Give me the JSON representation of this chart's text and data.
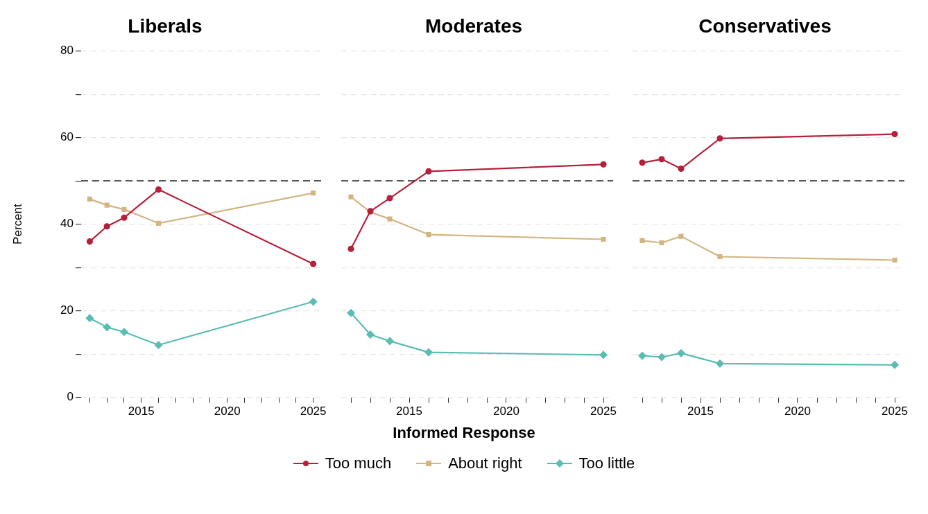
{
  "chart_data": [
    {
      "type": "line",
      "title": "Liberals",
      "ylabel": "Percent",
      "legend_title": "Informed Response",
      "legend": "bottom",
      "grid": "y",
      "x": [
        2012,
        2013,
        2014,
        2016,
        2025
      ],
      "xlim": [
        2011.5,
        2025.5
      ],
      "xticks": [
        {
          "value": 2012,
          "label": null
        },
        {
          "value": 2013,
          "label": null
        },
        {
          "value": 2014,
          "label": null
        },
        2015,
        {
          "value": 2016,
          "label": null
        },
        {
          "value": 2017,
          "label": null
        },
        {
          "value": 2018,
          "label": null
        },
        {
          "value": 2019,
          "label": null
        },
        2020,
        {
          "value": 2021,
          "label": null
        },
        {
          "value": 2022,
          "label": null
        },
        {
          "value": 2023,
          "label": null
        },
        {
          "value": 2024,
          "label": null
        },
        2025
      ],
      "ylim": [
        0,
        80
      ],
      "yticks": [
        0,
        {
          "value": 10,
          "label": null
        },
        20,
        {
          "value": 30,
          "label": null
        },
        40,
        {
          "value": 50,
          "label": null
        },
        60,
        {
          "value": 70,
          "label": null
        },
        80
      ],
      "ref_lines": [
        {
          "axis": "y",
          "value": 50,
          "color": "#222222",
          "line_style": "dashed"
        }
      ],
      "series": [
        {
          "name": "Too much",
          "color": "#b5203a",
          "marker": "circle",
          "values": [
            36,
            39.5,
            41.5,
            48,
            30.8
          ]
        },
        {
          "name": "About right",
          "color": "#d3b582",
          "marker": "square",
          "values": [
            45.8,
            44.4,
            43.4,
            40.2,
            47.2
          ]
        },
        {
          "name": "Too little",
          "color": "#5bbcb3",
          "marker": "diamond",
          "values": [
            18.3,
            16.2,
            15.1,
            12.1,
            22.1
          ]
        }
      ]
    },
    {
      "type": "line",
      "title": "Moderates",
      "tick_labels": "x",
      "grid": "y",
      "x": [
        2012,
        2013,
        2014,
        2016,
        2025
      ],
      "xlim": [
        2011.5,
        2025.5
      ],
      "xticks": [
        {
          "value": 2012,
          "label": null
        },
        {
          "value": 2013,
          "label": null
        },
        {
          "value": 2014,
          "label": null
        },
        2015,
        {
          "value": 2016,
          "label": null
        },
        {
          "value": 2017,
          "label": null
        },
        {
          "value": 2018,
          "label": null
        },
        {
          "value": 2019,
          "label": null
        },
        2020,
        {
          "value": 2021,
          "label": null
        },
        {
          "value": 2022,
          "label": null
        },
        {
          "value": 2023,
          "label": null
        },
        {
          "value": 2024,
          "label": null
        },
        2025
      ],
      "ylim": [
        0,
        80
      ],
      "yticks": [
        0,
        {
          "value": 10,
          "label": null
        },
        20,
        {
          "value": 30,
          "label": null
        },
        40,
        {
          "value": 50,
          "label": null
        },
        60,
        {
          "value": 70,
          "label": null
        },
        80
      ],
      "ref_lines": [
        {
          "axis": "y",
          "value": 50,
          "color": "#222222",
          "line_style": "dashed"
        }
      ],
      "series": [
        {
          "color": "#b5203a",
          "marker": "circle",
          "values": [
            34.3,
            43,
            46,
            52.2,
            53.8
          ]
        },
        {
          "color": "#d3b582",
          "marker": "square",
          "values": [
            46.3,
            42.8,
            41.2,
            37.6,
            36.5
          ]
        },
        {
          "color": "#5bbcb3",
          "marker": "diamond",
          "values": [
            19.5,
            14.5,
            13,
            10.4,
            9.8
          ]
        }
      ]
    },
    {
      "type": "line",
      "title": "Conservatives",
      "tick_labels": "x",
      "grid": "y",
      "x": [
        2012,
        2013,
        2014,
        2016,
        2025
      ],
      "xlim": [
        2011.5,
        2025.5
      ],
      "xticks": [
        {
          "value": 2012,
          "label": null
        },
        {
          "value": 2013,
          "label": null
        },
        {
          "value": 2014,
          "label": null
        },
        2015,
        {
          "value": 2016,
          "label": null
        },
        {
          "value": 2017,
          "label": null
        },
        {
          "value": 2018,
          "label": null
        },
        {
          "value": 2019,
          "label": null
        },
        2020,
        {
          "value": 2021,
          "label": null
        },
        {
          "value": 2022,
          "label": null
        },
        {
          "value": 2023,
          "label": null
        },
        {
          "value": 2024,
          "label": null
        },
        2025
      ],
      "ylim": [
        0,
        80
      ],
      "yticks": [
        0,
        {
          "value": 10,
          "label": null
        },
        20,
        {
          "value": 30,
          "label": null
        },
        40,
        {
          "value": 50,
          "label": null
        },
        60,
        {
          "value": 70,
          "label": null
        },
        80
      ],
      "ref_lines": [
        {
          "axis": "y",
          "value": 50,
          "color": "#222222",
          "line_style": "dashed"
        }
      ],
      "series": [
        {
          "color": "#b5203a",
          "marker": "circle",
          "values": [
            54.2,
            55,
            52.8,
            59.8,
            60.8
          ]
        },
        {
          "color": "#d3b582",
          "marker": "square",
          "values": [
            36.2,
            35.7,
            37.2,
            32.5,
            31.7
          ]
        },
        {
          "color": "#5bbcb3",
          "marker": "diamond",
          "values": [
            9.6,
            9.3,
            10.2,
            7.8,
            7.5
          ]
        }
      ]
    }
  ]
}
